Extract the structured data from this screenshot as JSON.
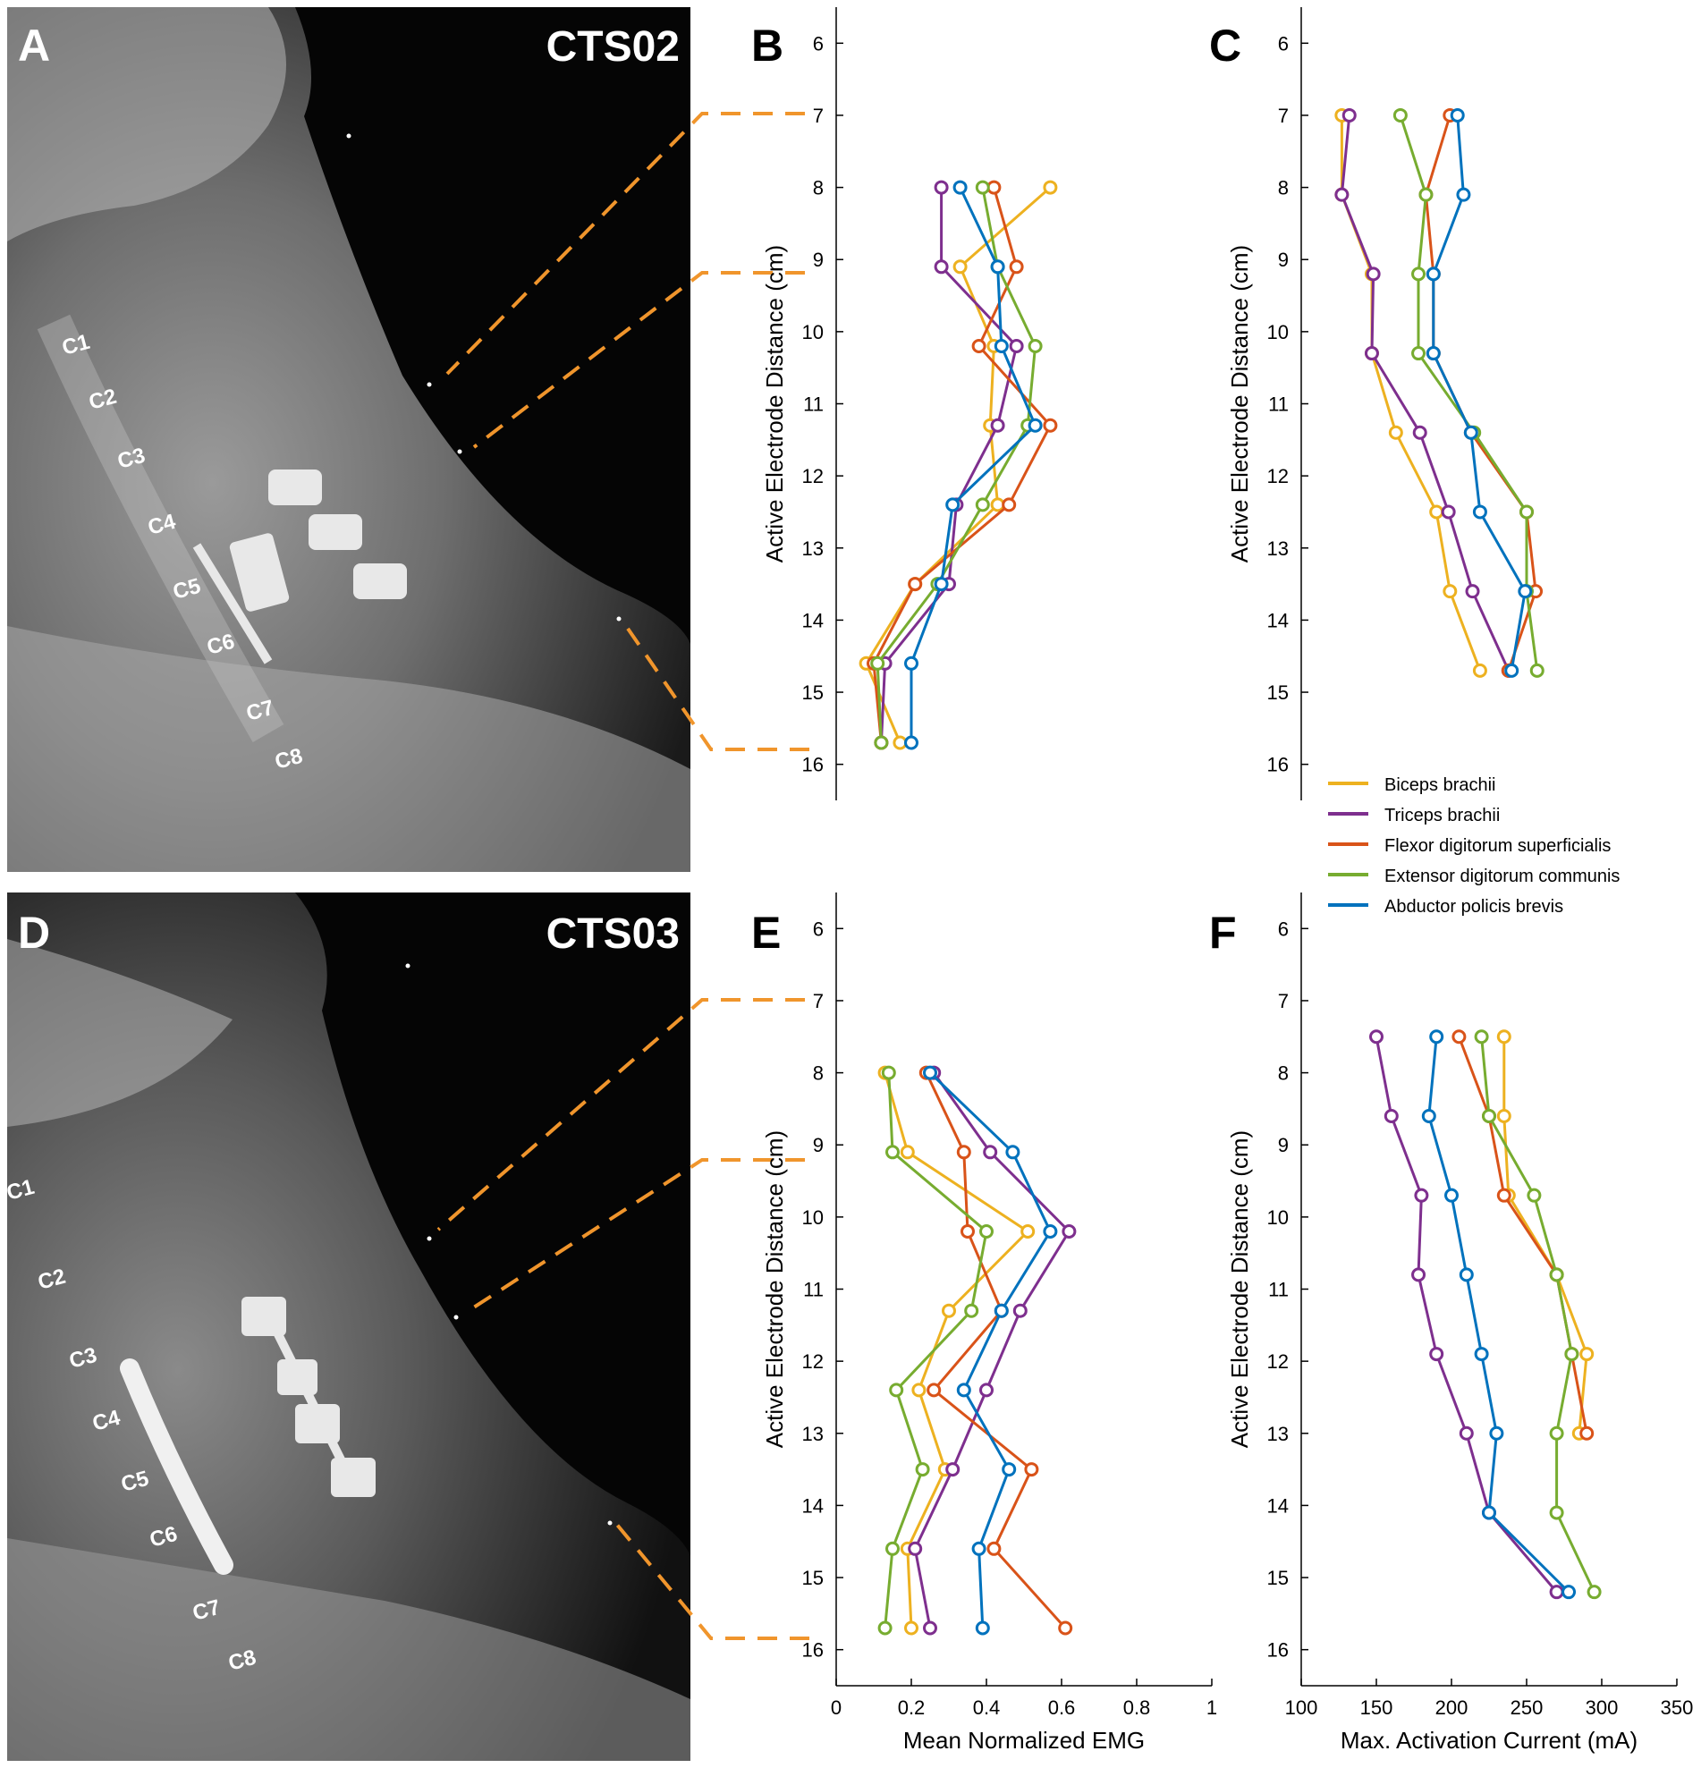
{
  "colors": {
    "Biceps brachii": "#EDB120",
    "Triceps brachii": "#7E2F8E",
    "Flexor digitorum superficialis": "#D95319",
    "Extensor digitorum communis": "#77AC30",
    "Abductor policis brevis": "#0072BD",
    "guide_line": "#F0952C"
  },
  "panels": {
    "A": {
      "letter": "A",
      "subject": "CTS02",
      "vertebrae": [
        "C1",
        "C2",
        "C3",
        "C4",
        "C5",
        "C6",
        "C7",
        "C8"
      ]
    },
    "B": {
      "letter": "B"
    },
    "C": {
      "letter": "C"
    },
    "D": {
      "letter": "D",
      "subject": "CTS03",
      "vertebrae": [
        "C1",
        "C2",
        "C3",
        "C4",
        "C5",
        "C6",
        "C7",
        "C8"
      ]
    },
    "E": {
      "letter": "E"
    },
    "F": {
      "letter": "F"
    }
  },
  "legend": [
    "Biceps brachii",
    "Triceps brachii",
    "Flexor digitorum superficialis",
    "Extensor digitorum communis",
    "Abductor policis brevis"
  ],
  "chart_data": [
    {
      "id": "B",
      "type": "line",
      "ylabel": "Active Electrode Distance (cm)",
      "xlabel": "",
      "ylim": [
        5.5,
        16.5
      ],
      "yreversed": true,
      "xlim": [
        0,
        1
      ],
      "yticks": [
        6,
        7,
        8,
        9,
        10,
        11,
        12,
        13,
        14,
        15,
        16
      ],
      "xticks": [],
      "series": [
        {
          "name": "Biceps brachii",
          "points": [
            [
              0.57,
              8
            ],
            [
              0.33,
              9.1
            ],
            [
              0.42,
              10.2
            ],
            [
              0.41,
              11.3
            ],
            [
              0.43,
              12.4
            ],
            [
              0.21,
              13.5
            ],
            [
              0.08,
              14.6
            ],
            [
              0.17,
              15.7
            ]
          ]
        },
        {
          "name": "Triceps brachii",
          "points": [
            [
              0.28,
              8
            ],
            [
              0.28,
              9.1
            ],
            [
              0.48,
              10.2
            ],
            [
              0.43,
              11.3
            ],
            [
              0.32,
              12.4
            ],
            [
              0.3,
              13.5
            ],
            [
              0.13,
              14.6
            ],
            [
              0.12,
              15.7
            ]
          ]
        },
        {
          "name": "Flexor digitorum superficialis",
          "points": [
            [
              0.42,
              8
            ],
            [
              0.48,
              9.1
            ],
            [
              0.38,
              10.2
            ],
            [
              0.57,
              11.3
            ],
            [
              0.46,
              12.4
            ],
            [
              0.21,
              13.5
            ],
            [
              0.1,
              14.6
            ],
            [
              0.12,
              15.7
            ]
          ]
        },
        {
          "name": "Extensor digitorum communis",
          "points": [
            [
              0.39,
              8
            ],
            [
              0.43,
              9.1
            ],
            [
              0.53,
              10.2
            ],
            [
              0.51,
              11.3
            ],
            [
              0.39,
              12.4
            ],
            [
              0.27,
              13.5
            ],
            [
              0.11,
              14.6
            ],
            [
              0.12,
              15.7
            ]
          ]
        },
        {
          "name": "Abductor policis brevis",
          "points": [
            [
              0.33,
              8
            ],
            [
              0.43,
              9.1
            ],
            [
              0.44,
              10.2
            ],
            [
              0.53,
              11.3
            ],
            [
              0.31,
              12.4
            ],
            [
              0.28,
              13.5
            ],
            [
              0.2,
              14.6
            ],
            [
              0.2,
              15.7
            ]
          ]
        }
      ]
    },
    {
      "id": "C",
      "type": "line",
      "ylabel": "Active Electrode Distance (cm)",
      "xlabel": "",
      "ylim": [
        5.5,
        16.5
      ],
      "yreversed": true,
      "xlim": [
        100,
        350
      ],
      "yticks": [
        6,
        7,
        8,
        9,
        10,
        11,
        12,
        13,
        14,
        15,
        16
      ],
      "xticks": [],
      "series": [
        {
          "name": "Biceps brachii",
          "points": [
            [
              127,
              7
            ],
            [
              127,
              8.1
            ],
            [
              147,
              9.2
            ],
            [
              147,
              10.3
            ],
            [
              163,
              11.4
            ],
            [
              190,
              12.5
            ],
            [
              199,
              13.6
            ],
            [
              219,
              14.7
            ]
          ]
        },
        {
          "name": "Triceps brachii",
          "points": [
            [
              132,
              7
            ],
            [
              127,
              8.1
            ],
            [
              148,
              9.2
            ],
            [
              147,
              10.3
            ],
            [
              179,
              11.4
            ],
            [
              198,
              12.5
            ],
            [
              214,
              13.6
            ],
            [
              238,
              14.7
            ]
          ]
        },
        {
          "name": "Flexor digitorum superficialis",
          "points": [
            [
              199,
              7
            ],
            [
              183,
              8.1
            ],
            [
              188,
              9.2
            ],
            [
              188,
              10.3
            ],
            [
              213,
              11.4
            ],
            [
              250,
              12.5
            ],
            [
              256,
              13.6
            ],
            [
              238,
              14.7
            ]
          ]
        },
        {
          "name": "Extensor digitorum communis",
          "points": [
            [
              166,
              7
            ],
            [
              183,
              8.1
            ],
            [
              178,
              9.2
            ],
            [
              178,
              10.3
            ],
            [
              215,
              11.4
            ],
            [
              250,
              12.5
            ],
            [
              250,
              13.6
            ],
            [
              257,
              14.7
            ]
          ]
        },
        {
          "name": "Abductor policis brevis",
          "points": [
            [
              204,
              7
            ],
            [
              208,
              8.1
            ],
            [
              188,
              9.2
            ],
            [
              188,
              10.3
            ],
            [
              213,
              11.4
            ],
            [
              219,
              12.5
            ],
            [
              249,
              13.6
            ],
            [
              240,
              14.7
            ]
          ]
        }
      ]
    },
    {
      "id": "E",
      "type": "line",
      "ylabel": "Active Electrode Distance (cm)",
      "xlabel": "Mean Normalized EMG",
      "ylim": [
        5.5,
        16.5
      ],
      "yreversed": true,
      "xlim": [
        0,
        1
      ],
      "yticks": [
        6,
        7,
        8,
        9,
        10,
        11,
        12,
        13,
        14,
        15,
        16
      ],
      "xticks": [
        0,
        0.2,
        0.4,
        0.6,
        0.8,
        1
      ],
      "series": [
        {
          "name": "Biceps brachii",
          "points": [
            [
              0.13,
              8
            ],
            [
              0.19,
              9.1
            ],
            [
              0.51,
              10.2
            ],
            [
              0.3,
              11.3
            ],
            [
              0.22,
              12.4
            ],
            [
              0.29,
              13.5
            ],
            [
              0.19,
              14.6
            ],
            [
              0.2,
              15.7
            ]
          ]
        },
        {
          "name": "Triceps brachii",
          "points": [
            [
              0.26,
              8
            ],
            [
              0.41,
              9.1
            ],
            [
              0.62,
              10.2
            ],
            [
              0.49,
              11.3
            ],
            [
              0.4,
              12.4
            ],
            [
              0.31,
              13.5
            ],
            [
              0.21,
              14.6
            ],
            [
              0.25,
              15.7
            ]
          ]
        },
        {
          "name": "Flexor digitorum superficialis",
          "points": [
            [
              0.24,
              8
            ],
            [
              0.34,
              9.1
            ],
            [
              0.35,
              10.2
            ],
            [
              0.44,
              11.3
            ],
            [
              0.26,
              12.4
            ],
            [
              0.52,
              13.5
            ],
            [
              0.42,
              14.6
            ],
            [
              0.61,
              15.7
            ]
          ]
        },
        {
          "name": "Extensor digitorum communis",
          "points": [
            [
              0.14,
              8
            ],
            [
              0.15,
              9.1
            ],
            [
              0.4,
              10.2
            ],
            [
              0.36,
              11.3
            ],
            [
              0.16,
              12.4
            ],
            [
              0.23,
              13.5
            ],
            [
              0.15,
              14.6
            ],
            [
              0.13,
              15.7
            ]
          ]
        },
        {
          "name": "Abductor policis brevis",
          "points": [
            [
              0.25,
              8
            ],
            [
              0.47,
              9.1
            ],
            [
              0.57,
              10.2
            ],
            [
              0.44,
              11.3
            ],
            [
              0.34,
              12.4
            ],
            [
              0.46,
              13.5
            ],
            [
              0.38,
              14.6
            ],
            [
              0.39,
              15.7
            ]
          ]
        }
      ]
    },
    {
      "id": "F",
      "type": "line",
      "ylabel": "Active Electrode Distance (cm)",
      "xlabel": "Max. Activation Current (mA)",
      "ylim": [
        5.5,
        16.5
      ],
      "yreversed": true,
      "xlim": [
        100,
        350
      ],
      "yticks": [
        6,
        7,
        8,
        9,
        10,
        11,
        12,
        13,
        14,
        15,
        16
      ],
      "xticks": [
        100,
        150,
        200,
        250,
        300,
        350
      ],
      "series": [
        {
          "name": "Biceps brachii",
          "points": [
            [
              235,
              7.5
            ],
            [
              235,
              8.6
            ],
            [
              238,
              9.7
            ],
            [
              270,
              10.8
            ],
            [
              290,
              11.9
            ],
            [
              285,
              13
            ]
          ]
        },
        {
          "name": "Triceps brachii",
          "points": [
            [
              150,
              7.5
            ],
            [
              160,
              8.6
            ],
            [
              180,
              9.7
            ],
            [
              178,
              10.8
            ],
            [
              190,
              11.9
            ],
            [
              210,
              13
            ],
            [
              225,
              14.1
            ],
            [
              270,
              15.2
            ]
          ]
        },
        {
          "name": "Flexor digitorum superficialis",
          "points": [
            [
              205,
              7.5
            ],
            [
              225,
              8.6
            ],
            [
              235,
              9.7
            ],
            [
              270,
              10.8
            ],
            [
              280,
              11.9
            ],
            [
              290,
              13
            ]
          ]
        },
        {
          "name": "Extensor digitorum communis",
          "points": [
            [
              220,
              7.5
            ],
            [
              225,
              8.6
            ],
            [
              255,
              9.7
            ],
            [
              270,
              10.8
            ],
            [
              280,
              11.9
            ],
            [
              270,
              13
            ],
            [
              270,
              14.1
            ],
            [
              295,
              15.2
            ]
          ]
        },
        {
          "name": "Abductor policis brevis",
          "points": [
            [
              190,
              7.5
            ],
            [
              185,
              8.6
            ],
            [
              200,
              9.7
            ],
            [
              210,
              10.8
            ],
            [
              220,
              11.9
            ],
            [
              230,
              13
            ],
            [
              225,
              14.1
            ],
            [
              278,
              15.2
            ]
          ]
        }
      ]
    }
  ]
}
